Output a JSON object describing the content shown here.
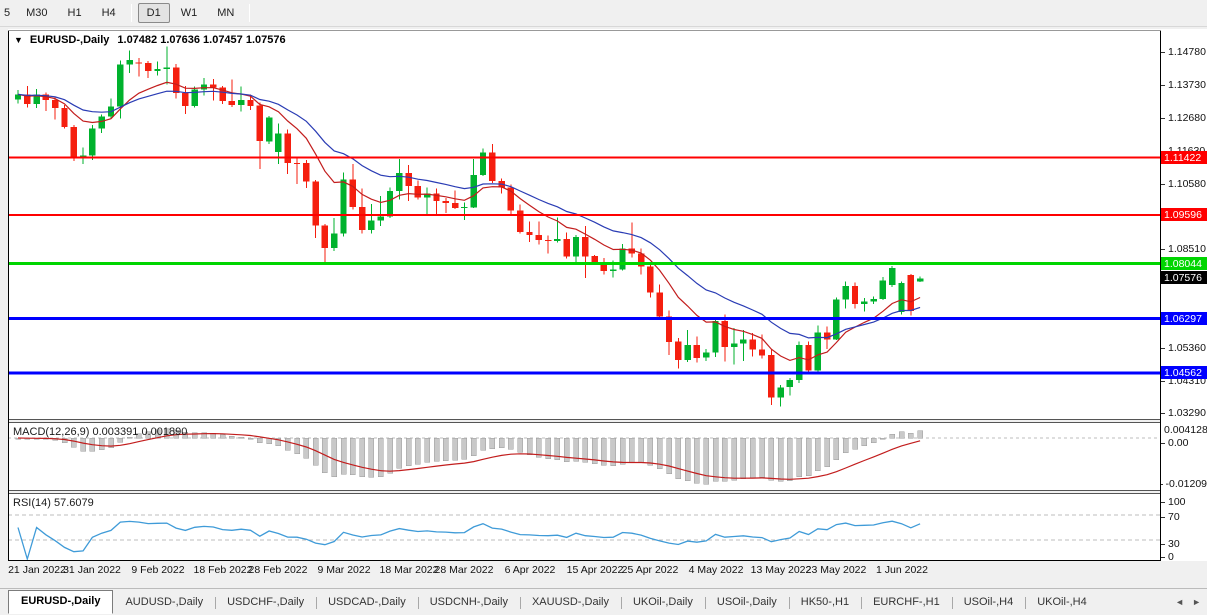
{
  "toolbar": {
    "timeframes": [
      "5",
      "M30",
      "H1",
      "H4",
      "D1",
      "W1",
      "MN"
    ],
    "active": "D1"
  },
  "chart": {
    "symbol_title": "EURUSD-,Daily",
    "open": "1.07482",
    "high": "1.07636",
    "low": "1.07457",
    "close": "1.07576",
    "dropdown_caret": "▼",
    "type": "candlestick",
    "scale": {
      "max": 1.1548,
      "min": 1.031
    },
    "price_ticks": [
      "1.14780",
      "1.13730",
      "1.12680",
      "1.11630",
      "1.10580",
      "1.08510",
      "1.05360",
      "1.04310",
      "1.03290"
    ],
    "levels": [
      {
        "value": 1.11422,
        "label": "1.11422",
        "color": "#ff0000",
        "width": 2
      },
      {
        "value": 1.09596,
        "label": "1.09596",
        "color": "#ff0000",
        "width": 2
      },
      {
        "value": 1.08044,
        "label": "1.08044",
        "color": "#00d500",
        "width": 3
      },
      {
        "value": 1.06297,
        "label": "1.06297",
        "color": "#0000ff",
        "width": 3
      },
      {
        "value": 1.04562,
        "label": "1.04562",
        "color": "#0000ff",
        "width": 3
      }
    ],
    "current_price_label": {
      "value": "1.07576",
      "bg": "#000000"
    },
    "colors": {
      "up": "#00b22d",
      "down": "#f51f0f",
      "ma_fast": "#c21d1d",
      "ma_slow": "#2a3cb4"
    },
    "ma_periods": {
      "fast": 10,
      "slow": 20
    },
    "date_labels": [
      {
        "text": "21 Jan 2022",
        "index": 2
      },
      {
        "text": "31 Jan 2022",
        "index": 8
      },
      {
        "text": "9 Feb 2022",
        "index": 15
      },
      {
        "text": "18 Feb 2022",
        "index": 22
      },
      {
        "text": "28 Feb 2022",
        "index": 28
      },
      {
        "text": "9 Mar 2022",
        "index": 35
      },
      {
        "text": "18 Mar 2022",
        "index": 42
      },
      {
        "text": "28 Mar 2022",
        "index": 48
      },
      {
        "text": "6 Apr 2022",
        "index": 55
      },
      {
        "text": "15 Apr 2022",
        "index": 62
      },
      {
        "text": "25 Apr 2022",
        "index": 68
      },
      {
        "text": "4 May 2022",
        "index": 75
      },
      {
        "text": "13 May 2022",
        "index": 82
      },
      {
        "text": "23 May 2022",
        "index": 88
      },
      {
        "text": "1 Jun 2022",
        "index": 95
      }
    ],
    "candles": [
      [
        1.1326,
        1.1357,
        1.1314,
        1.1343
      ],
      [
        1.1343,
        1.1369,
        1.1301,
        1.1313
      ],
      [
        1.1313,
        1.136,
        1.13,
        1.1343
      ],
      [
        1.1343,
        1.1349,
        1.1291,
        1.1325
      ],
      [
        1.1325,
        1.1333,
        1.1263,
        1.13
      ],
      [
        1.13,
        1.131,
        1.1235,
        1.124
      ],
      [
        1.124,
        1.1245,
        1.1131,
        1.1144
      ],
      [
        1.1144,
        1.1174,
        1.1121,
        1.1148
      ],
      [
        1.1148,
        1.1246,
        1.1135,
        1.1234
      ],
      [
        1.1234,
        1.1279,
        1.122,
        1.1273
      ],
      [
        1.1273,
        1.133,
        1.1267,
        1.1304
      ],
      [
        1.1304,
        1.1451,
        1.1266,
        1.1438
      ],
      [
        1.1438,
        1.1483,
        1.1411,
        1.1453
      ],
      [
        1.1445,
        1.1459,
        1.14,
        1.1443
      ],
      [
        1.1443,
        1.1449,
        1.1396,
        1.1417
      ],
      [
        1.1417,
        1.1448,
        1.1403,
        1.1424
      ],
      [
        1.1424,
        1.1495,
        1.1375,
        1.1428
      ],
      [
        1.1428,
        1.144,
        1.133,
        1.1348
      ],
      [
        1.1348,
        1.1369,
        1.128,
        1.1306
      ],
      [
        1.1306,
        1.1368,
        1.1301,
        1.1359
      ],
      [
        1.1359,
        1.1395,
        1.134,
        1.1374
      ],
      [
        1.1374,
        1.1392,
        1.1324,
        1.1365
      ],
      [
        1.1365,
        1.137,
        1.1312,
        1.1322
      ],
      [
        1.1322,
        1.1391,
        1.1303,
        1.131
      ],
      [
        1.131,
        1.1368,
        1.1288,
        1.1325
      ],
      [
        1.1325,
        1.1343,
        1.1293,
        1.1307
      ],
      [
        1.1307,
        1.1317,
        1.1106,
        1.1194
      ],
      [
        1.1194,
        1.1274,
        1.1185,
        1.127
      ],
      [
        1.116,
        1.125,
        1.1122,
        1.1218
      ],
      [
        1.1218,
        1.1232,
        1.109,
        1.1125
      ],
      [
        1.1125,
        1.1145,
        1.1058,
        1.1124
      ],
      [
        1.1124,
        1.1135,
        1.1045,
        1.1066
      ],
      [
        1.1066,
        1.107,
        1.0886,
        1.0926
      ],
      [
        1.0926,
        1.0931,
        1.0806,
        1.0854
      ],
      [
        1.0854,
        1.095,
        1.0845,
        1.0901
      ],
      [
        1.0901,
        1.1095,
        1.0891,
        1.1073
      ],
      [
        1.1073,
        1.1121,
        1.0976,
        1.0985
      ],
      [
        1.0985,
        1.1043,
        1.0901,
        1.0911
      ],
      [
        1.0911,
        1.0995,
        1.09,
        1.0941
      ],
      [
        1.0941,
        1.102,
        1.0925,
        1.0954
      ],
      [
        1.0954,
        1.1046,
        1.095,
        1.1036
      ],
      [
        1.1036,
        1.1138,
        1.1008,
        1.1093
      ],
      [
        1.1093,
        1.1119,
        1.1003,
        1.1052
      ],
      [
        1.1052,
        1.1069,
        1.1009,
        1.1015
      ],
      [
        1.1015,
        1.1047,
        1.0962,
        1.1028
      ],
      [
        1.1028,
        1.1044,
        1.0963,
        1.1004
      ],
      [
        1.1004,
        1.1014,
        1.0965,
        1.0997
      ],
      [
        1.0997,
        1.1038,
        1.0979,
        1.0982
      ],
      [
        1.0982,
        1.0999,
        1.0944,
        1.0984
      ],
      [
        1.0984,
        1.1137,
        1.0982,
        1.1086
      ],
      [
        1.1086,
        1.1171,
        1.1083,
        1.1158
      ],
      [
        1.1158,
        1.1185,
        1.1061,
        1.1067
      ],
      [
        1.1067,
        1.1076,
        1.1027,
        1.1046
      ],
      [
        1.1046,
        1.1056,
        1.096,
        1.0973
      ],
      [
        1.0973,
        1.0992,
        1.09,
        1.0905
      ],
      [
        1.0905,
        1.0939,
        1.0874,
        1.0896
      ],
      [
        1.0896,
        1.0939,
        1.0865,
        1.0879
      ],
      [
        1.0879,
        1.0894,
        1.0836,
        1.0876
      ],
      [
        1.0876,
        1.0951,
        1.0872,
        1.0883
      ],
      [
        1.0883,
        1.0904,
        1.0821,
        1.0827
      ],
      [
        1.0827,
        1.0896,
        1.0809,
        1.0889
      ],
      [
        1.0889,
        1.0924,
        1.0758,
        1.0828
      ],
      [
        1.0828,
        1.0832,
        1.08,
        1.0808
      ],
      [
        1.0808,
        1.0822,
        1.077,
        1.0781
      ],
      [
        1.0781,
        1.0815,
        1.0761,
        1.0786
      ],
      [
        1.0786,
        1.0867,
        1.0783,
        1.0852
      ],
      [
        1.0852,
        1.0936,
        1.0824,
        1.0837
      ],
      [
        1.0837,
        1.0852,
        1.077,
        1.0796
      ],
      [
        1.0796,
        1.0802,
        1.0697,
        1.0713
      ],
      [
        1.0713,
        1.0738,
        1.0635,
        1.0637
      ],
      [
        1.0637,
        1.0655,
        1.0514,
        1.0556
      ],
      [
        1.0556,
        1.0567,
        1.0471,
        1.0498
      ],
      [
        1.0498,
        1.0593,
        1.0492,
        1.0545
      ],
      [
        1.0545,
        1.0572,
        1.049,
        1.0505
      ],
      [
        1.0505,
        1.0533,
        1.0494,
        1.0522
      ],
      [
        1.0522,
        1.0632,
        1.0507,
        1.0622
      ],
      [
        1.0622,
        1.0642,
        1.0493,
        1.054
      ],
      [
        1.054,
        1.0599,
        1.0483,
        1.0551
      ],
      [
        1.0551,
        1.0594,
        1.0495,
        1.0563
      ],
      [
        1.0563,
        1.0584,
        1.0509,
        1.0531
      ],
      [
        1.0531,
        1.0579,
        1.0503,
        1.0513
      ],
      [
        1.0513,
        1.0532,
        1.0354,
        1.0379
      ],
      [
        1.0379,
        1.0419,
        1.0349,
        1.0411
      ],
      [
        1.0411,
        1.0441,
        1.0384,
        1.0434
      ],
      [
        1.0434,
        1.0556,
        1.0424,
        1.0546
      ],
      [
        1.0546,
        1.0556,
        1.0461,
        1.0465
      ],
      [
        1.0465,
        1.0607,
        1.0459,
        1.0585
      ],
      [
        1.0585,
        1.0604,
        1.0532,
        1.0563
      ],
      [
        1.0563,
        1.0697,
        1.0562,
        1.0691
      ],
      [
        1.0691,
        1.0748,
        1.0661,
        1.0734
      ],
      [
        1.0734,
        1.0744,
        1.0661,
        1.0676
      ],
      [
        1.0676,
        1.0695,
        1.0652,
        1.0684
      ],
      [
        1.0684,
        1.07,
        1.0676,
        1.0692
      ],
      [
        1.0692,
        1.0762,
        1.0688,
        1.0751
      ],
      [
        1.0736,
        1.0797,
        1.073,
        1.079
      ],
      [
        1.065,
        1.0748,
        1.0643,
        1.0743
      ],
      [
        1.0768,
        1.0772,
        1.064,
        1.0654
      ],
      [
        1.07482,
        1.07636,
        1.07457,
        1.07576
      ]
    ]
  },
  "macd": {
    "label_name": "MACD(12,26,9)",
    "main_value": "0.003391",
    "signal_value": "0.001890",
    "axis_max": "0.004128",
    "axis_zero": "0.00",
    "axis_min": "-0.01209",
    "histogram_color": "#c9c9c9",
    "histogram_border": "#9b9b9b",
    "signal_color": "#c21d1d",
    "params": {
      "fast": 12,
      "slow": 26,
      "signal": 9
    }
  },
  "rsi": {
    "label_name": "RSI(14)",
    "value": "57.6079",
    "axis": [
      "100",
      "70",
      "30",
      "0"
    ],
    "level_lines": [
      70,
      30
    ],
    "line_color": "#3f9bd8",
    "period": 14
  },
  "tabs": {
    "items": [
      "EURUSD-,Daily",
      "AUDUSD-,Daily",
      "USDCHF-,Daily",
      "USDCAD-,Daily",
      "USDCNH-,Daily",
      "XAUUSD-,Daily",
      "UKOil-,Daily",
      "USOil-,Daily",
      "HK50-,H1",
      "EURCHF-,H1",
      "USOil-,H4",
      "UKOil-,H4"
    ],
    "active": "EURUSD-,Daily",
    "nav_left": "◄",
    "nav_right": "►"
  }
}
